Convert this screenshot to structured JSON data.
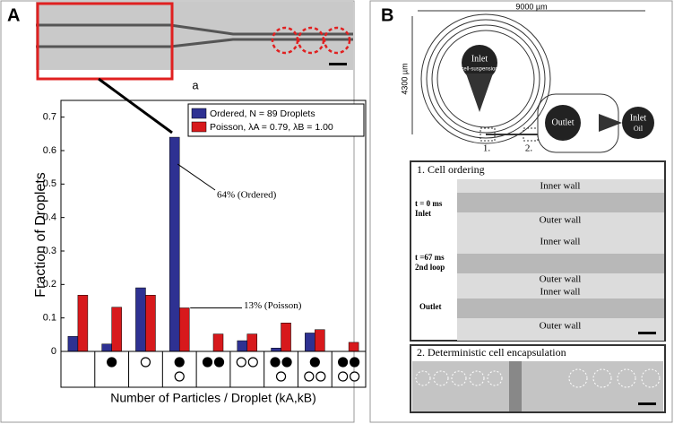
{
  "panels": {
    "a": "A",
    "b": "B",
    "image_caption": "a"
  },
  "chart_data": {
    "type": "bar",
    "ylabel": "Fraction of Droplets",
    "xlabel": "Number of Particles / Droplet (kA,kB)",
    "categories": [
      null,
      null,
      null,
      null,
      null,
      null,
      null,
      null,
      null
    ],
    "series": [
      {
        "name": "Ordered, N = 89 Droplets",
        "color": "#2e3192",
        "values": [
          0.045,
          0.022,
          0.19,
          0.64,
          0,
          0.032,
          0.01,
          0.055,
          0
        ]
      },
      {
        "name": "Poisson, λA = 0.79, λB = 1.00",
        "color": "#d7191c",
        "values": [
          0.168,
          0.132,
          0.168,
          0.13,
          0.052,
          0.052,
          0.085,
          0.065,
          0.027
        ]
      }
    ],
    "ylim": [
      0,
      0.75
    ],
    "yticks": [
      0,
      0.1,
      0.2,
      0.3,
      0.4,
      0.5,
      0.6,
      0.7
    ],
    "legend": "upper right",
    "annotations": [
      "64% (Ordered)",
      "13% (Poisson)"
    ]
  },
  "diagram": {
    "width": "9000 µm",
    "height": "4300 µm",
    "inlet": "Inlet",
    "inlet_sub": "cell-suspension",
    "outlet": "Outlet",
    "inlet_oil": "Inlet",
    "oil": "Oil",
    "mark1": "1.",
    "mark2": "2."
  },
  "micro1": {
    "title": "1. Cell ordering",
    "inner": "Inner wall",
    "outer": "Outer wall",
    "t0": "t = 0 ms",
    "t0b": "Inlet",
    "t1": "t =67 ms",
    "t1b": "2nd loop",
    "out": "Outlet"
  },
  "micro2": {
    "title": "2. Deterministic cell encapsulation"
  }
}
